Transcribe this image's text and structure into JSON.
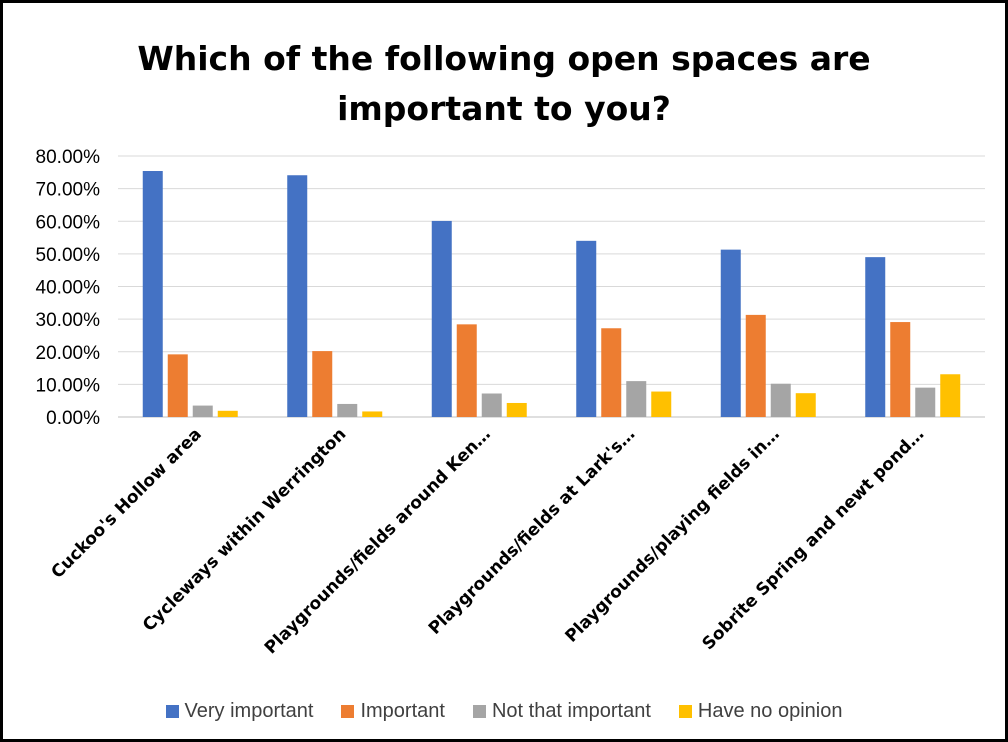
{
  "chart_data": {
    "type": "bar",
    "title": "Which of the following open spaces are important to you?",
    "xlabel": "",
    "ylabel": "",
    "ylim": [
      0,
      0.8
    ],
    "yticks": [
      "0.00%",
      "10.00%",
      "20.00%",
      "30.00%",
      "40.00%",
      "50.00%",
      "60.00%",
      "70.00%",
      "80.00%"
    ],
    "grid": true,
    "legend_position": "bottom",
    "categories": [
      "Cuckoo's Hollow area",
      "Cycleways within Werrington",
      "Playgrounds/fields around Ken…",
      "Playgrounds/fields at Lark's…",
      "Playgrounds/playing fields in…",
      "Sobrite Spring and newt pond…"
    ],
    "series": [
      {
        "name": "Very important",
        "color": "#4472C4",
        "values": [
          0.754,
          0.741,
          0.601,
          0.54,
          0.513,
          0.49
        ]
      },
      {
        "name": "Important",
        "color": "#ED7D31",
        "values": [
          0.192,
          0.202,
          0.284,
          0.272,
          0.313,
          0.291
        ]
      },
      {
        "name": "Not that important",
        "color": "#A5A5A5",
        "values": [
          0.035,
          0.04,
          0.072,
          0.11,
          0.102,
          0.09
        ]
      },
      {
        "name": "Have no opinion",
        "color": "#FFC000",
        "values": [
          0.019,
          0.017,
          0.043,
          0.078,
          0.073,
          0.131
        ]
      }
    ]
  }
}
